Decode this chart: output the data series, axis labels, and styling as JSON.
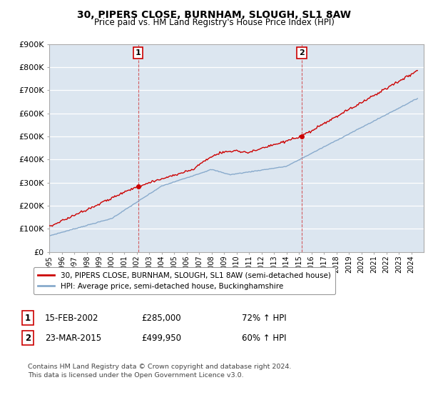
{
  "title": "30, PIPERS CLOSE, BURNHAM, SLOUGH, SL1 8AW",
  "subtitle": "Price paid vs. HM Land Registry's House Price Index (HPI)",
  "ylim": [
    0,
    900000
  ],
  "yticks": [
    0,
    100000,
    200000,
    300000,
    400000,
    500000,
    600000,
    700000,
    800000,
    900000
  ],
  "ytick_labels": [
    "£0",
    "£100K",
    "£200K",
    "£300K",
    "£400K",
    "£500K",
    "£600K",
    "£700K",
    "£800K",
    "£900K"
  ],
  "sale1_date": 2002.12,
  "sale1_price": 285000,
  "sale1_label": "1",
  "sale1_date_str": "15-FEB-2002",
  "sale1_price_str": "£285,000",
  "sale1_hpi": "72% ↑ HPI",
  "sale2_date": 2015.22,
  "sale2_price": 499950,
  "sale2_label": "2",
  "sale2_date_str": "23-MAR-2015",
  "sale2_price_str": "£499,950",
  "sale2_hpi": "60% ↑ HPI",
  "line1_color": "#cc0000",
  "line2_color": "#88aacc",
  "bg_color": "#ffffff",
  "plot_bg_color": "#dce6f0",
  "grid_color": "#ffffff",
  "legend_label1": "30, PIPERS CLOSE, BURNHAM, SLOUGH, SL1 8AW (semi-detached house)",
  "legend_label2": "HPI: Average price, semi-detached house, Buckinghamshire",
  "footer": "Contains HM Land Registry data © Crown copyright and database right 2024.\nThis data is licensed under the Open Government Licence v3.0.",
  "xmin": 1995,
  "xmax": 2025
}
